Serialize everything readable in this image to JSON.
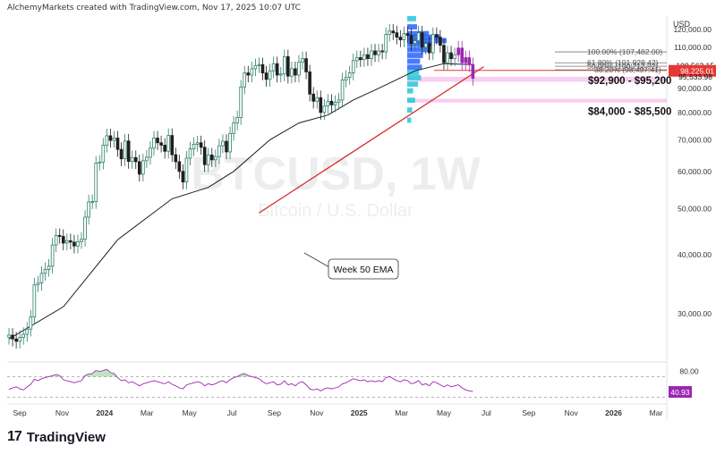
{
  "header": {
    "text": "AlchemyMarkets created with TradingView.com, Nov 17, 2025 10:07 UTC"
  },
  "currency": "USD",
  "footer": {
    "brand": "TradingView",
    "logo_icon": "tradingview-logo-icon"
  },
  "watermark": {
    "symbol": "BTCUSD, 1W",
    "name": "Bitcoin / U.S. Dollar"
  },
  "colors": {
    "up": "#2e7d6b",
    "down": "#1f1f1f",
    "ema": "#1c1c1c",
    "trendline": "#d32f2f",
    "zone": "#f6c6ee",
    "rsi": "#9c27b0",
    "vp_blue": "#2962ff",
    "vp_cyan": "#26c6da",
    "fib": "#777777",
    "price_tag": "#131722",
    "red_tag": "#e53935"
  },
  "annotations": {
    "ema_label": "Week 50 EMA",
    "zone1_label": "$92,900 - $95,200",
    "zone2_label": "$84,000 - $85,500",
    "fib_100": "100.00% (107,482.00)",
    "fib_618": "61.80% (101,928.42)",
    "fib_50": "50.00% (100,212.92)",
    "fib_382": "38.20% (98,497.41)"
  },
  "price_tags": {
    "current": "100,563.15",
    "red": "98,225.01",
    "low": "95,533.98",
    "rsi": "40.93"
  },
  "chart_data": {
    "type": "candlestick",
    "symbol": "BTCUSD",
    "interval": "1W",
    "y_scale": "log",
    "ylim": [
      24000,
      128000
    ],
    "y_ticks": [
      30000,
      40000,
      50000,
      60000,
      70000,
      80000,
      90000,
      110000,
      120000
    ],
    "y_tick_labels": [
      "30,000.00",
      "40,000.00",
      "50,000.00",
      "60,000.00",
      "70,000.00",
      "80,000.00",
      "90,000.00",
      "110,000.00",
      "120,000.00"
    ],
    "x_tick_labels": [
      "Sep",
      "Nov",
      "2024",
      "Mar",
      "May",
      "Jul",
      "Sep",
      "Nov",
      "2025",
      "Mar",
      "May",
      "Jul",
      "Sep",
      "Nov",
      "2026",
      "Mar"
    ],
    "closes": [
      27000,
      26500,
      26200,
      26700,
      27100,
      27800,
      29500,
      34500,
      34800,
      36500,
      37200,
      37800,
      41900,
      43900,
      43700,
      42300,
      42800,
      42500,
      41700,
      42600,
      43100,
      48000,
      51700,
      51800,
      62500,
      62800,
      68200,
      71400,
      69800,
      70600,
      66800,
      63800,
      69600,
      63000,
      64200,
      62900,
      59200,
      63200,
      64300,
      67200,
      70600,
      69000,
      68200,
      66200,
      71500,
      65100,
      62900,
      60000,
      57000,
      64000,
      67000,
      68500,
      69000,
      67500,
      62000,
      65000,
      63500,
      64500,
      68000,
      69500,
      66000,
      72200,
      76000,
      78000,
      90600,
      97000,
      96000,
      99000,
      100500,
      101000,
      97000,
      94000,
      98000,
      101500,
      96000,
      96500,
      105000,
      95500,
      99000,
      96000,
      102200,
      104000,
      97500,
      87500,
      84500,
      86000,
      80000,
      82500,
      84500,
      83000,
      84000,
      85000,
      93700,
      95000,
      97000,
      103000,
      104500,
      103500,
      106000,
      104000,
      108000,
      106000,
      108000,
      107500,
      117000,
      119000,
      118000,
      115500,
      114000,
      117500,
      116500,
      112000,
      113500,
      118000,
      110000,
      112000,
      107000,
      117000,
      115500,
      111000,
      102000,
      107000,
      104000,
      106000,
      109500,
      102000,
      104500,
      101000,
      94500
    ],
    "ema50_points": [
      [
        0,
        26500
      ],
      [
        15,
        31000
      ],
      [
        30,
        43000
      ],
      [
        45,
        52500
      ],
      [
        55,
        55500
      ],
      [
        62,
        60000
      ],
      [
        72,
        70000
      ],
      [
        80,
        76000
      ],
      [
        88,
        79000
      ],
      [
        95,
        85000
      ],
      [
        102,
        90000
      ],
      [
        112,
        98000
      ],
      [
        120,
        101500
      ],
      [
        128,
        101000
      ]
    ],
    "trendline": {
      "from": [
        69,
        49000
      ],
      "to": [
        131,
        100000
      ]
    },
    "fib_levels": [
      107482,
      101928.42,
      100212.92,
      98497.41
    ],
    "zones": [
      [
        92900,
        95200
      ],
      [
        84000,
        85500
      ]
    ],
    "horizontal_line": 98225.01,
    "rsi": {
      "ylim": [
        20,
        90
      ],
      "tick": 80,
      "tick_label": "80.00",
      "upper": 70,
      "lower": 30,
      "last": 40.93,
      "values": [
        45,
        48,
        50,
        46,
        44,
        50,
        55,
        65,
        62,
        66,
        68,
        70,
        72,
        74,
        72,
        64,
        62,
        60,
        58,
        60,
        62,
        72,
        75,
        76,
        82,
        80,
        82,
        84,
        78,
        76,
        68,
        62,
        64,
        58,
        60,
        56,
        52,
        56,
        58,
        60,
        62,
        60,
        58,
        56,
        60,
        55,
        52,
        48,
        46,
        54,
        56,
        58,
        60,
        58,
        52,
        56,
        54,
        56,
        60,
        62,
        58,
        64,
        68,
        70,
        74,
        76,
        72,
        70,
        68,
        66,
        60,
        56,
        58,
        60,
        54,
        55,
        62,
        54,
        56,
        52,
        58,
        60,
        54,
        46,
        44,
        46,
        42,
        46,
        48,
        46,
        48,
        50,
        56,
        58,
        62,
        66,
        64,
        62,
        64,
        60,
        62,
        60,
        62,
        60,
        68,
        70,
        66,
        62,
        60,
        64,
        62,
        56,
        58,
        62,
        54,
        56,
        52,
        60,
        58,
        54,
        50,
        54,
        50,
        52,
        54,
        48,
        44,
        42,
        40.93
      ]
    }
  }
}
